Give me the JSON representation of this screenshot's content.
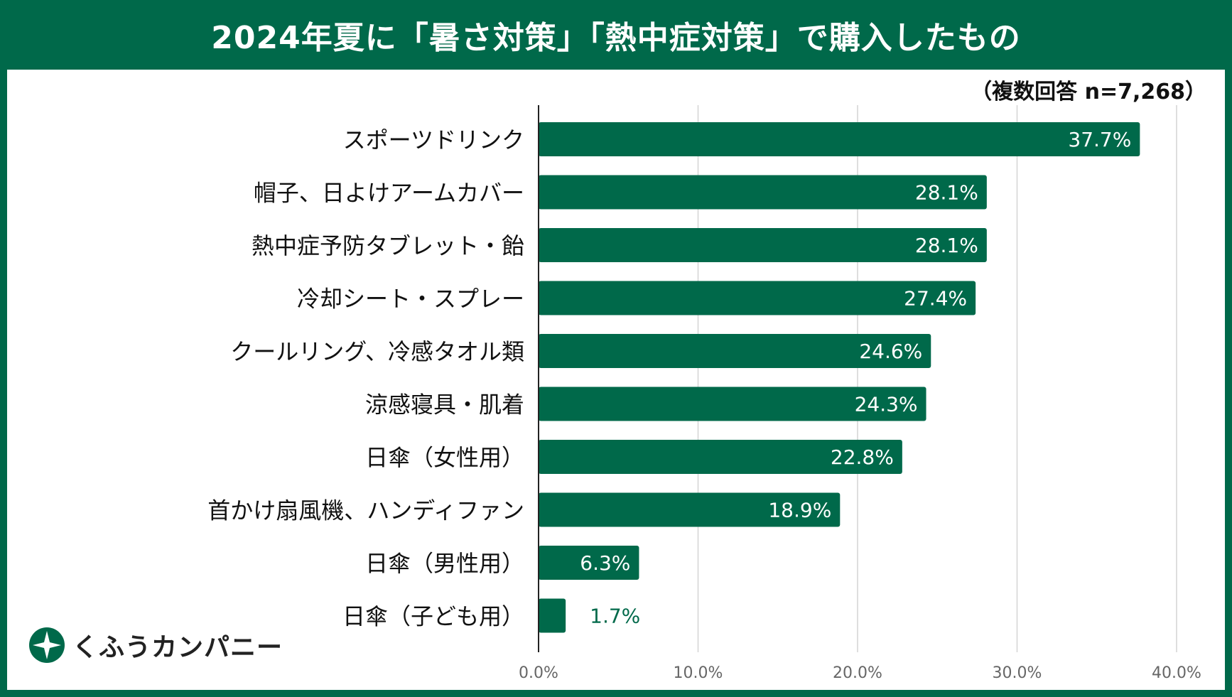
{
  "colors": {
    "accent": "#00694a",
    "grid": "#d4d4d4",
    "label": "#111111",
    "tick": "#666666"
  },
  "header": {
    "title": "2024年夏に「暑さ対策」「熱中症対策」で購入したもの",
    "note": "（複数回答 n=7,268）"
  },
  "brand": {
    "name": "くふうカンパニー",
    "icon": "leaf-star-logo-icon"
  },
  "chart_data": {
    "type": "bar",
    "orientation": "horizontal",
    "categories": [
      "スポーツドリンク",
      "帽子、日よけアームカバー",
      "熱中症予防タブレット・飴",
      "冷却シート・スプレー",
      "クールリング、冷感タオル類",
      "涼感寝具・肌着",
      "日傘（女性用）",
      "首かけ扇風機、ハンディファン",
      "日傘（男性用）",
      "日傘（子ども用）"
    ],
    "values": [
      37.7,
      28.1,
      28.1,
      27.4,
      24.6,
      24.3,
      22.8,
      18.9,
      6.3,
      1.7
    ],
    "value_labels": [
      "37.7%",
      "28.1%",
      "28.1%",
      "27.4%",
      "24.6%",
      "24.3%",
      "22.8%",
      "18.9%",
      "6.3%",
      "1.7%"
    ],
    "xlim": [
      0,
      40
    ],
    "xticks": [
      0,
      10,
      20,
      30,
      40
    ],
    "xtick_labels": [
      "0.0%",
      "10.0%",
      "20.0%",
      "30.0%",
      "40.0%"
    ],
    "grid": true,
    "legend": "none"
  }
}
